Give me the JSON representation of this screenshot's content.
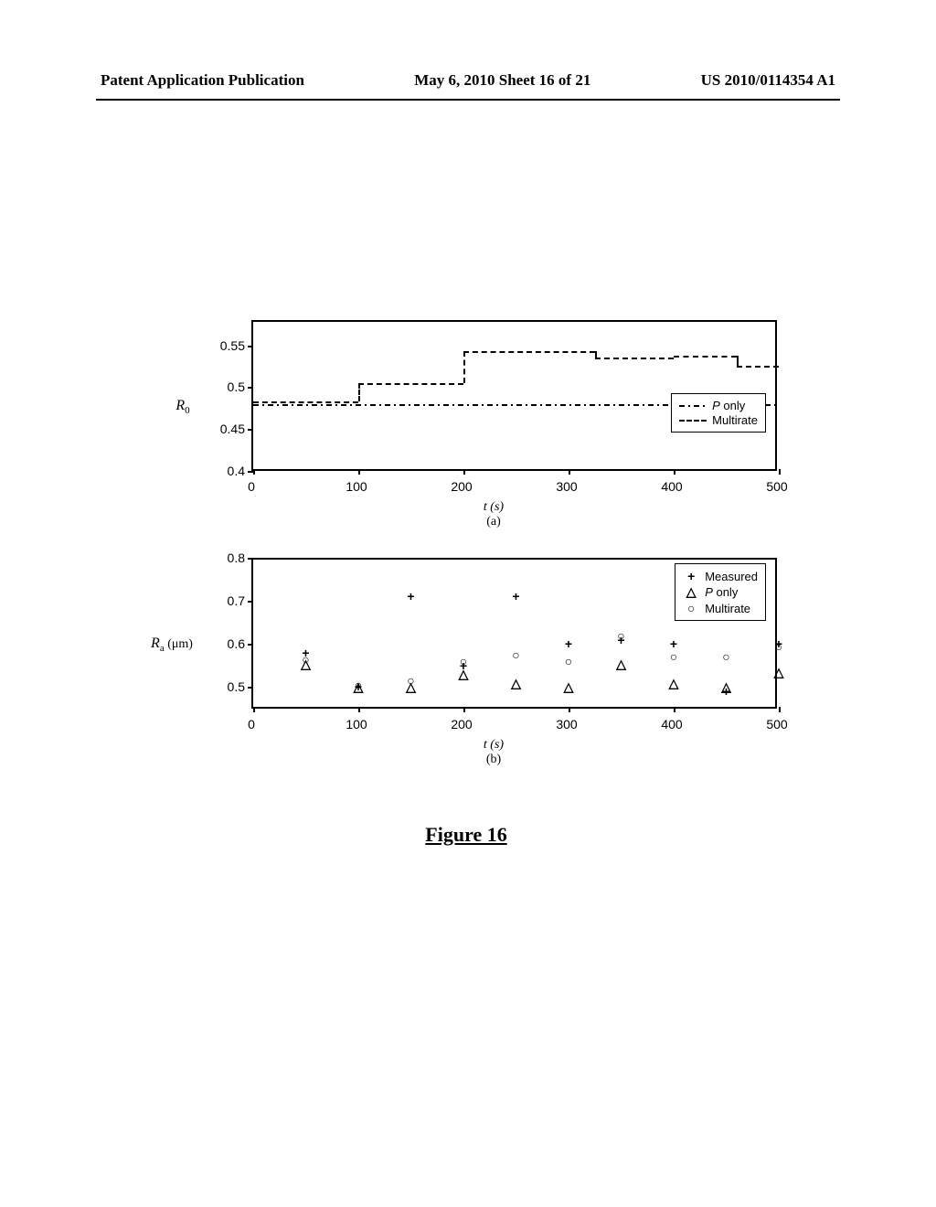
{
  "header": {
    "left": "Patent Application Publication",
    "center": "May 6, 2010  Sheet 16 of 21",
    "right": "US 2010/0114354 A1"
  },
  "figure_caption": "Figure 16",
  "chart_a": {
    "type": "line",
    "xlim": [
      0,
      500
    ],
    "ylim": [
      0.4,
      0.58
    ],
    "xticks": [
      0,
      100,
      200,
      300,
      400,
      500
    ],
    "yticks": [
      0.4,
      0.45,
      0.5,
      0.55
    ],
    "ylabel_main": "R",
    "ylabel_sub": "0",
    "xlabel_top": "t (s)",
    "xlabel_bottom": "(a)",
    "legend": {
      "items": [
        {
          "style": "dashdot",
          "label_it": "P",
          "label_rest": " only"
        },
        {
          "style": "dash",
          "label_rest": "Multirate"
        }
      ]
    },
    "series_p_only": {
      "style": "dashdot",
      "y_const": 0.48
    },
    "series_multirate": {
      "style": "dash",
      "steps": [
        {
          "x0": 0,
          "x1": 100,
          "y": 0.483
        },
        {
          "x0": 100,
          "x1": 200,
          "y": 0.505
        },
        {
          "x0": 200,
          "x1": 325,
          "y": 0.543
        },
        {
          "x0": 325,
          "x1": 400,
          "y": 0.535
        },
        {
          "x0": 400,
          "x1": 460,
          "y": 0.537
        },
        {
          "x0": 460,
          "x1": 500,
          "y": 0.525
        }
      ]
    }
  },
  "chart_b": {
    "type": "scatter",
    "xlim": [
      0,
      500
    ],
    "ylim": [
      0.45,
      0.8
    ],
    "xticks": [
      0,
      100,
      200,
      300,
      400,
      500
    ],
    "yticks": [
      0.5,
      0.6,
      0.7,
      0.8
    ],
    "ylabel_main": "R",
    "ylabel_sub": "a",
    "ylabel_unit": " (μm)",
    "xlabel_top": "t (s)",
    "xlabel_bottom": "(b)",
    "legend": {
      "items": [
        {
          "sym": "+",
          "label_rest": "Measured"
        },
        {
          "sym": "△",
          "label_it": "P",
          "label_rest": " only"
        },
        {
          "sym": "○",
          "label_rest": "Multirate"
        }
      ]
    },
    "series": {
      "measured": {
        "sym": "+",
        "points": [
          {
            "x": 50,
            "y": 0.58
          },
          {
            "x": 100,
            "y": 0.5
          },
          {
            "x": 150,
            "y": 0.71
          },
          {
            "x": 200,
            "y": 0.55
          },
          {
            "x": 250,
            "y": 0.71
          },
          {
            "x": 300,
            "y": 0.6
          },
          {
            "x": 350,
            "y": 0.61
          },
          {
            "x": 400,
            "y": 0.6
          },
          {
            "x": 450,
            "y": 0.49
          },
          {
            "x": 500,
            "y": 0.6
          }
        ]
      },
      "p_only": {
        "sym": "△",
        "points": [
          {
            "x": 50,
            "y": 0.555
          },
          {
            "x": 100,
            "y": 0.5
          },
          {
            "x": 150,
            "y": 0.5
          },
          {
            "x": 200,
            "y": 0.53
          },
          {
            "x": 250,
            "y": 0.51
          },
          {
            "x": 300,
            "y": 0.5
          },
          {
            "x": 350,
            "y": 0.555
          },
          {
            "x": 400,
            "y": 0.51
          },
          {
            "x": 450,
            "y": 0.5
          },
          {
            "x": 500,
            "y": 0.535
          }
        ]
      },
      "multirate": {
        "sym": "○",
        "points": [
          {
            "x": 50,
            "y": 0.565
          },
          {
            "x": 100,
            "y": 0.505
          },
          {
            "x": 150,
            "y": 0.515
          },
          {
            "x": 200,
            "y": 0.56
          },
          {
            "x": 250,
            "y": 0.575
          },
          {
            "x": 300,
            "y": 0.56
          },
          {
            "x": 350,
            "y": 0.62
          },
          {
            "x": 400,
            "y": 0.57
          },
          {
            "x": 450,
            "y": 0.57
          },
          {
            "x": 500,
            "y": 0.595
          }
        ]
      }
    }
  },
  "colors": {
    "axis": "#000000",
    "bg": "#ffffff",
    "text": "#000000"
  }
}
